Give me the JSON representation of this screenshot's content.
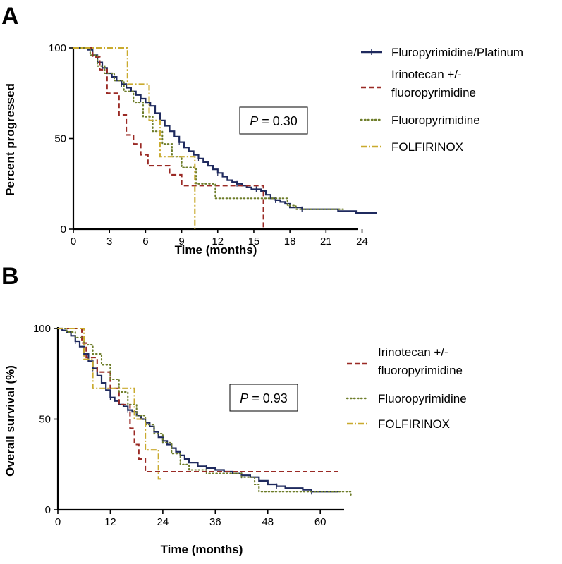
{
  "colors": {
    "fluoropyrimidine_platinum": "#1f2a5e",
    "irinotecan": "#9a2a25",
    "fluoropyrimidine": "#6e7d2a",
    "folfirinox": "#c9aa2e"
  },
  "chart_data": [
    {
      "type": "line",
      "panel_letter": "A",
      "xlabel": "Time (months)",
      "ylabel": "Percent progressed",
      "xlim": [
        0,
        25.2
      ],
      "ylim": [
        0,
        100
      ],
      "xticks": [
        "0",
        "3",
        "6",
        "9",
        "12",
        "15",
        "18",
        "21",
        "24"
      ],
      "yticks": [
        "0",
        "50",
        "100"
      ],
      "legend_position": "right",
      "annotation": {
        "p_italic": "P",
        "p_rest": " = 0.30"
      },
      "series": [
        {
          "name": "Fluropyrimidine/Platinum",
          "key": "fluoropyrimidine_platinum",
          "style": "solid",
          "x": [
            0,
            1.2,
            1.6,
            2.0,
            2.4,
            2.8,
            3.2,
            3.6,
            4.0,
            4.4,
            4.8,
            5.2,
            5.6,
            6.0,
            6.4,
            6.8,
            7.2,
            7.6,
            8.0,
            8.4,
            8.8,
            9.2,
            9.6,
            10.0,
            10.4,
            10.8,
            11.2,
            11.6,
            12.0,
            12.4,
            12.8,
            13.2,
            13.6,
            14.0,
            14.4,
            14.8,
            15.2,
            15.6,
            16.0,
            16.4,
            16.8,
            17.2,
            17.6,
            18.0,
            19.0,
            20.0,
            22.0,
            23.5,
            25.2
          ],
          "y": [
            100,
            99,
            96,
            92,
            89,
            86,
            84,
            82,
            80,
            78,
            76,
            74,
            72,
            70,
            68,
            64,
            60,
            57,
            54,
            51,
            48,
            45,
            43,
            41,
            39,
            37,
            35,
            33,
            31,
            29,
            27,
            26,
            25,
            24,
            23,
            22,
            22,
            21,
            19,
            17,
            16,
            15,
            14,
            12,
            11,
            11,
            10,
            9,
            9
          ]
        },
        {
          "name": "Irinotecan +/-\nfluoropyrimidine",
          "key": "irinotecan",
          "style": "dashed",
          "x": [
            0,
            1.6,
            2.2,
            2.8,
            3.8,
            4.4,
            5.0,
            5.6,
            6.2,
            7.0,
            8.0,
            9.0,
            9.6,
            11.0,
            13.0,
            15.8,
            15.8
          ],
          "y": [
            100,
            95,
            88,
            75,
            63,
            52,
            47,
            41,
            35,
            35,
            30,
            24,
            24,
            24,
            24,
            24,
            0
          ]
        },
        {
          "name": "Fluoropyrimidine",
          "key": "fluoropyrimidine",
          "style": "dotted",
          "x": [
            0,
            1.4,
            2.0,
            2.6,
            3.4,
            4.2,
            5.0,
            5.8,
            6.6,
            7.4,
            8.2,
            9.0,
            10.2,
            11.0,
            11.8,
            13.0,
            15.0,
            17.0,
            17.8,
            18.5,
            20.0,
            22.5
          ],
          "y": [
            100,
            96,
            90,
            86,
            82,
            76,
            70,
            62,
            54,
            47,
            40,
            34,
            25,
            25,
            17,
            17,
            17,
            17,
            13,
            11,
            11,
            11
          ]
        },
        {
          "name": "FOLFIRINOX",
          "key": "folfirinox",
          "style": "dashdot",
          "x": [
            0,
            1.4,
            4.5,
            4.5,
            6.3,
            6.3,
            7.2,
            7.2,
            10.1,
            10.1
          ],
          "y": [
            100,
            100,
            100,
            80,
            80,
            60,
            60,
            40,
            40,
            0
          ]
        }
      ]
    },
    {
      "type": "line",
      "panel_letter": "B",
      "xlabel": "Time (months)",
      "ylabel": "Overall survival (%)",
      "xlim": [
        0,
        64
      ],
      "ylim": [
        0,
        100
      ],
      "xticks": [
        "0",
        "12",
        "24",
        "36",
        "48",
        "60"
      ],
      "yticks": [
        "0",
        "50",
        "100"
      ],
      "legend_position": "right",
      "annotation": {
        "p_italic": "P",
        "p_rest": " = 0.93"
      },
      "series": [
        {
          "name": "",
          "key": "fluoropyrimidine_platinum",
          "style": "solid",
          "x": [
            0,
            1.0,
            2.0,
            3.0,
            4.0,
            5.0,
            6.0,
            7.0,
            8.0,
            9.0,
            10.0,
            11.0,
            12.0,
            13.0,
            14.0,
            15.0,
            16.0,
            17.0,
            18.0,
            19.0,
            20.0,
            21.0,
            22.0,
            23.0,
            24.0,
            25.0,
            26.0,
            27.0,
            28.0,
            29.0,
            30.0,
            32.0,
            34.0,
            36.0,
            38.0,
            40.0,
            42.0,
            44.0,
            46.0,
            48.0,
            50.0,
            52.0,
            54.0,
            56.0,
            58.0,
            60.0,
            64.0
          ],
          "y": [
            100,
            99,
            98,
            96,
            93,
            90,
            86,
            82,
            78,
            74,
            70,
            66,
            62,
            60,
            58,
            57,
            55,
            54,
            52,
            50,
            48,
            46,
            43,
            40,
            38,
            36,
            34,
            32,
            30,
            28,
            26,
            24,
            23,
            22,
            21,
            20,
            19,
            18,
            16,
            14,
            13,
            12,
            12,
            11,
            10,
            10,
            10
          ]
        },
        {
          "name": "Irinotecan +/-\nfluoropyrimidine",
          "key": "irinotecan",
          "style": "dashed",
          "x": [
            0,
            5.0,
            5.5,
            6.5,
            9.0,
            12.0,
            14.0,
            16.5,
            17.5,
            18.5,
            20.0,
            22.0,
            32.0,
            40.0,
            64.0
          ],
          "y": [
            100,
            100,
            92,
            84,
            76,
            67,
            58,
            45,
            36,
            28,
            21,
            21,
            21,
            21,
            21
          ]
        },
        {
          "name": "Fluoropyrimidine",
          "key": "fluoropyrimidine",
          "style": "dotted",
          "x": [
            0,
            2.0,
            4.0,
            6.0,
            8.0,
            10.0,
            12.0,
            14.0,
            16.0,
            18.0,
            20.0,
            22.0,
            24.0,
            26.0,
            28.0,
            30.0,
            34.0,
            38.0,
            42.0,
            45.0,
            46.0,
            50.0,
            56.0,
            62.0,
            66.0,
            67.0
          ],
          "y": [
            100,
            98,
            95,
            91,
            86,
            80,
            72,
            65,
            58,
            52,
            47,
            42,
            37,
            31,
            25,
            22,
            20,
            20,
            18,
            14,
            10,
            10,
            10,
            10,
            10,
            7
          ]
        },
        {
          "name": "FOLFIRINOX",
          "key": "folfirinox",
          "style": "dashdot",
          "x": [
            0,
            6.0,
            6.0,
            8.0,
            8.0,
            12.0,
            12.0,
            17.5,
            17.5,
            20.0,
            20.0,
            23.0,
            23.0,
            24.0
          ],
          "y": [
            100,
            100,
            83,
            83,
            67,
            67,
            67,
            67,
            50,
            50,
            33,
            33,
            17,
            17
          ]
        }
      ]
    }
  ]
}
